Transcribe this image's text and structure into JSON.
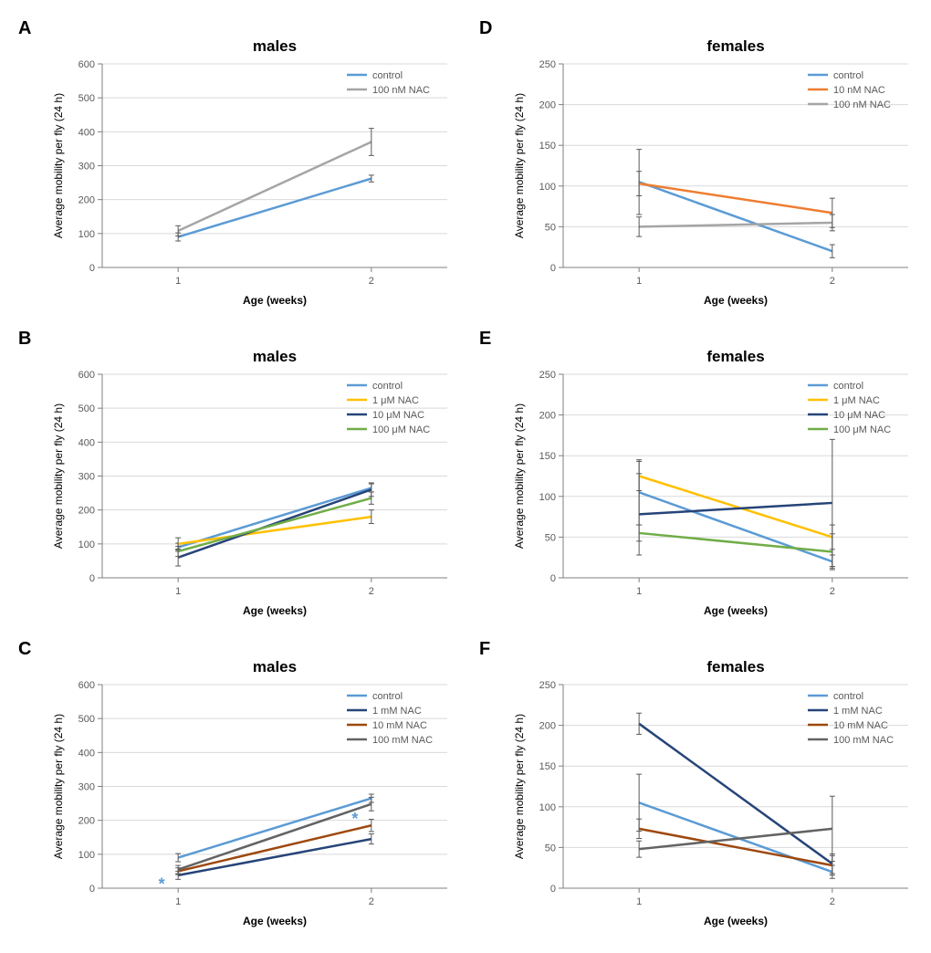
{
  "global": {
    "background_color": "#ffffff",
    "axis_color": "#7f7f7f",
    "gridline_color": "#d9d9d9",
    "tick_color": "#7f7f7f",
    "text_color": "#595959",
    "panel_letter_color": "#000000",
    "error_bar_color": "#595959",
    "panel_letter_fontsize": 20,
    "title_fontsize": 17,
    "axis_label_fontsize": 12,
    "tick_fontsize": 11,
    "legend_fontsize": 11,
    "line_width": 2.5,
    "error_cap_width": 6,
    "xlabel": "Age (weeks)",
    "ylabel": "Average mobility per fly (24 h)",
    "x_categories": [
      "1",
      "2"
    ],
    "asterisk_color": "#5b9bd5",
    "asterisk_fontsize": 18
  },
  "panels": [
    {
      "id": "A",
      "title": "males",
      "ylim": [
        0,
        600
      ],
      "ytick_step": 100,
      "series": [
        {
          "label": "control",
          "color": "#5b9bd5",
          "values": [
            90,
            262
          ],
          "err": [
            12,
            10
          ]
        },
        {
          "label": "100 nM NAC",
          "color": "#a5a5a5",
          "values": [
            108,
            370
          ],
          "err": [
            15,
            40
          ]
        }
      ],
      "asterisks": []
    },
    {
      "id": "D",
      "title": "females",
      "ylim": [
        0,
        250
      ],
      "ytick_step": 50,
      "series": [
        {
          "label": "control",
          "color": "#5b9bd5",
          "values": [
            105,
            20
          ],
          "err": [
            40,
            8
          ]
        },
        {
          "label": "10 nM NAC",
          "color": "#ed7d31",
          "values": [
            103,
            67
          ],
          "err": [
            15,
            18
          ]
        },
        {
          "label": "100 nM NAC",
          "color": "#a5a5a5",
          "values": [
            50,
            55
          ],
          "err": [
            12,
            10
          ]
        }
      ],
      "asterisks": []
    },
    {
      "id": "B",
      "title": "males",
      "ylim": [
        0,
        600
      ],
      "ytick_step": 100,
      "series": [
        {
          "label": "control",
          "color": "#5b9bd5",
          "values": [
            90,
            265
          ],
          "err": [
            12,
            12
          ]
        },
        {
          "label": "1 μM NAC",
          "color": "#ffc000",
          "values": [
            100,
            180
          ],
          "err": [
            18,
            20
          ]
        },
        {
          "label": "10  μM NAC",
          "color": "#264478",
          "values": [
            60,
            260
          ],
          "err": [
            25,
            20
          ]
        },
        {
          "label": "100  μM NAC",
          "color": "#70ad47",
          "values": [
            78,
            235
          ],
          "err": [
            15,
            18
          ]
        }
      ],
      "asterisks": []
    },
    {
      "id": "E",
      "title": "females",
      "ylim": [
        0,
        250
      ],
      "ytick_step": 50,
      "series": [
        {
          "label": "control",
          "color": "#5b9bd5",
          "values": [
            105,
            20
          ],
          "err": [
            40,
            8
          ]
        },
        {
          "label": "1 μM NAC",
          "color": "#ffc000",
          "values": [
            125,
            50
          ],
          "err": [
            18,
            15
          ]
        },
        {
          "label": "10  μM NAC",
          "color": "#264478",
          "values": [
            78,
            92
          ],
          "err": [
            50,
            78
          ]
        },
        {
          "label": "100  μM NAC",
          "color": "#70ad47",
          "values": [
            55,
            32
          ],
          "err": [
            10,
            22
          ]
        }
      ],
      "asterisks": []
    },
    {
      "id": "C",
      "title": "males",
      "ylim": [
        0,
        600
      ],
      "ytick_step": 100,
      "series": [
        {
          "label": "control",
          "color": "#5b9bd5",
          "values": [
            90,
            265
          ],
          "err": [
            12,
            12
          ]
        },
        {
          "label": "1 mM NAC",
          "color": "#264478",
          "values": [
            38,
            145
          ],
          "err": [
            12,
            15
          ]
        },
        {
          "label": "10 mM NAC",
          "color": "#9e480e",
          "values": [
            50,
            185
          ],
          "err": [
            10,
            18
          ]
        },
        {
          "label": "100 mM NAC",
          "color": "#636363",
          "values": [
            55,
            248
          ],
          "err": [
            12,
            20
          ]
        }
      ],
      "asterisks": [
        {
          "x": 0,
          "y_offset": 14
        },
        {
          "x": 1,
          "y_offset": 14
        }
      ]
    },
    {
      "id": "F",
      "title": "females",
      "ylim": [
        0,
        250
      ],
      "ytick_step": 50,
      "series": [
        {
          "label": "control",
          "color": "#5b9bd5",
          "values": [
            105,
            20
          ],
          "err": [
            35,
            8
          ]
        },
        {
          "label": "1 mM NAC",
          "color": "#264478",
          "values": [
            202,
            30
          ],
          "err": [
            13,
            12
          ]
        },
        {
          "label": "10 mM NAC",
          "color": "#9e480e",
          "values": [
            73,
            28
          ],
          "err": [
            12,
            12
          ]
        },
        {
          "label": "100 mM NAC",
          "color": "#636363",
          "values": [
            48,
            73
          ],
          "err": [
            10,
            40
          ]
        }
      ],
      "asterisks": []
    }
  ]
}
